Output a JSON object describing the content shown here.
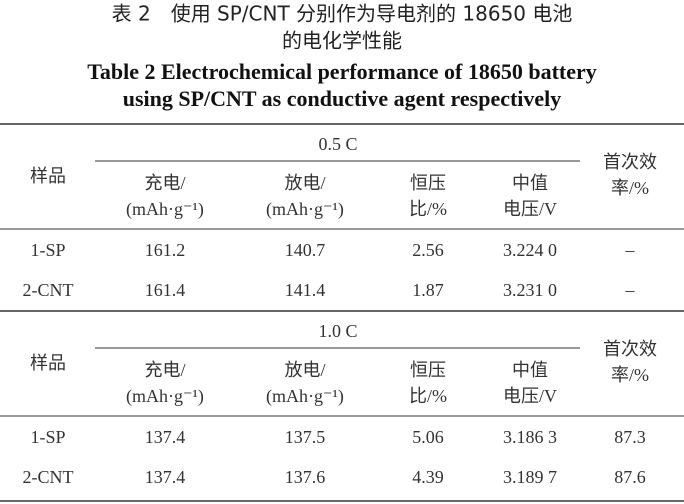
{
  "title_cn": [
    "表 2　使用 SP/CNT 分别作为导电剂的 18650 电池",
    "的电化学性能"
  ],
  "title_en": [
    "Table 2 Electrochemical performance of 18650 battery",
    "using SP/CNT as conductive agent respectively"
  ],
  "sections": [
    {
      "condition": "0.5 C",
      "header": [
        [
          "样品"
        ],
        [
          "充电/",
          "(mAh·g⁻¹)"
        ],
        [
          "放电/",
          "(mAh·g⁻¹)"
        ],
        [
          "恒压",
          "比/%"
        ],
        [
          "中值",
          "电压/V"
        ],
        [
          "首次效",
          "率/%"
        ]
      ],
      "rows": [
        [
          "1-SP",
          161.2,
          140.7,
          2.56,
          "3.224 0",
          "–"
        ],
        [
          "2-CNT",
          161.4,
          141.4,
          1.87,
          "3.231 0",
          "–"
        ]
      ]
    },
    {
      "condition": "1.0 C",
      "header": [
        [
          "样品"
        ],
        [
          "充电/",
          "(mAh·g⁻¹)"
        ],
        [
          "放电/",
          "(mAh·g⁻¹)"
        ],
        [
          "恒压",
          "比/%"
        ],
        [
          "中值",
          "电压/V"
        ],
        [
          "首次效",
          "率/%"
        ]
      ],
      "rows": [
        [
          "1-SP",
          137.4,
          137.5,
          5.06,
          "3.186 3",
          87.3
        ],
        [
          "2-CNT",
          137.4,
          137.6,
          4.39,
          "3.189 7",
          87.6
        ]
      ]
    }
  ]
}
